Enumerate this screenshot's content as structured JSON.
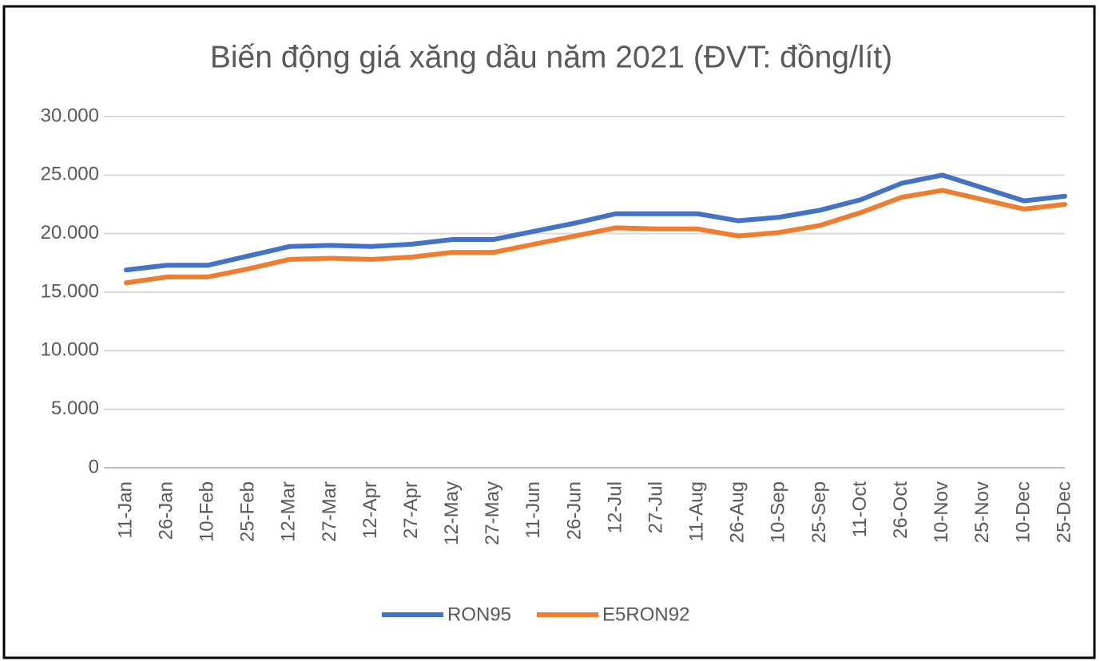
{
  "chart_data": {
    "type": "line",
    "title": "Biến động giá xăng dầu năm 2021 (ĐVT: đồng/lít)",
    "categories": [
      "11-Jan",
      "26-Jan",
      "10-Feb",
      "25-Feb",
      "12-Mar",
      "27-Mar",
      "12-Apr",
      "27-Apr",
      "12-May",
      "27-May",
      "11-Jun",
      "26-Jun",
      "12-Jul",
      "27-Jul",
      "11-Aug",
      "26-Aug",
      "10-Sep",
      "25-Sep",
      "11-Oct",
      "26-Oct",
      "10-Nov",
      "25-Nov",
      "10-Dec",
      "25-Dec"
    ],
    "series": [
      {
        "name": "RON95",
        "color": "#4472c4",
        "values": [
          16900,
          17300,
          17300,
          18100,
          18900,
          19000,
          18900,
          19100,
          19500,
          19500,
          20200,
          20900,
          21700,
          21700,
          21700,
          21100,
          21400,
          22000,
          22900,
          24300,
          25000,
          23900,
          22800,
          23200
        ]
      },
      {
        "name": "E5RON92",
        "color": "#ed7d31",
        "values": [
          15800,
          16300,
          16300,
          17000,
          17800,
          17900,
          17800,
          18000,
          18400,
          18400,
          19100,
          19800,
          20500,
          20400,
          20400,
          19800,
          20100,
          20700,
          21800,
          23100,
          23700,
          22900,
          22100,
          22500
        ]
      }
    ],
    "ylim": [
      0,
      30000
    ],
    "yticks": [
      0,
      {
        "value": 5000,
        "label": "5.000"
      },
      {
        "value": 10000,
        "label": "10.000"
      },
      {
        "value": 15000,
        "label": "15.000"
      },
      {
        "value": 20000,
        "label": "20.000"
      },
      {
        "value": 25000,
        "label": "25.000"
      },
      {
        "value": 30000,
        "label": "30.000"
      }
    ],
    "grid": true,
    "legend": "bottom"
  }
}
